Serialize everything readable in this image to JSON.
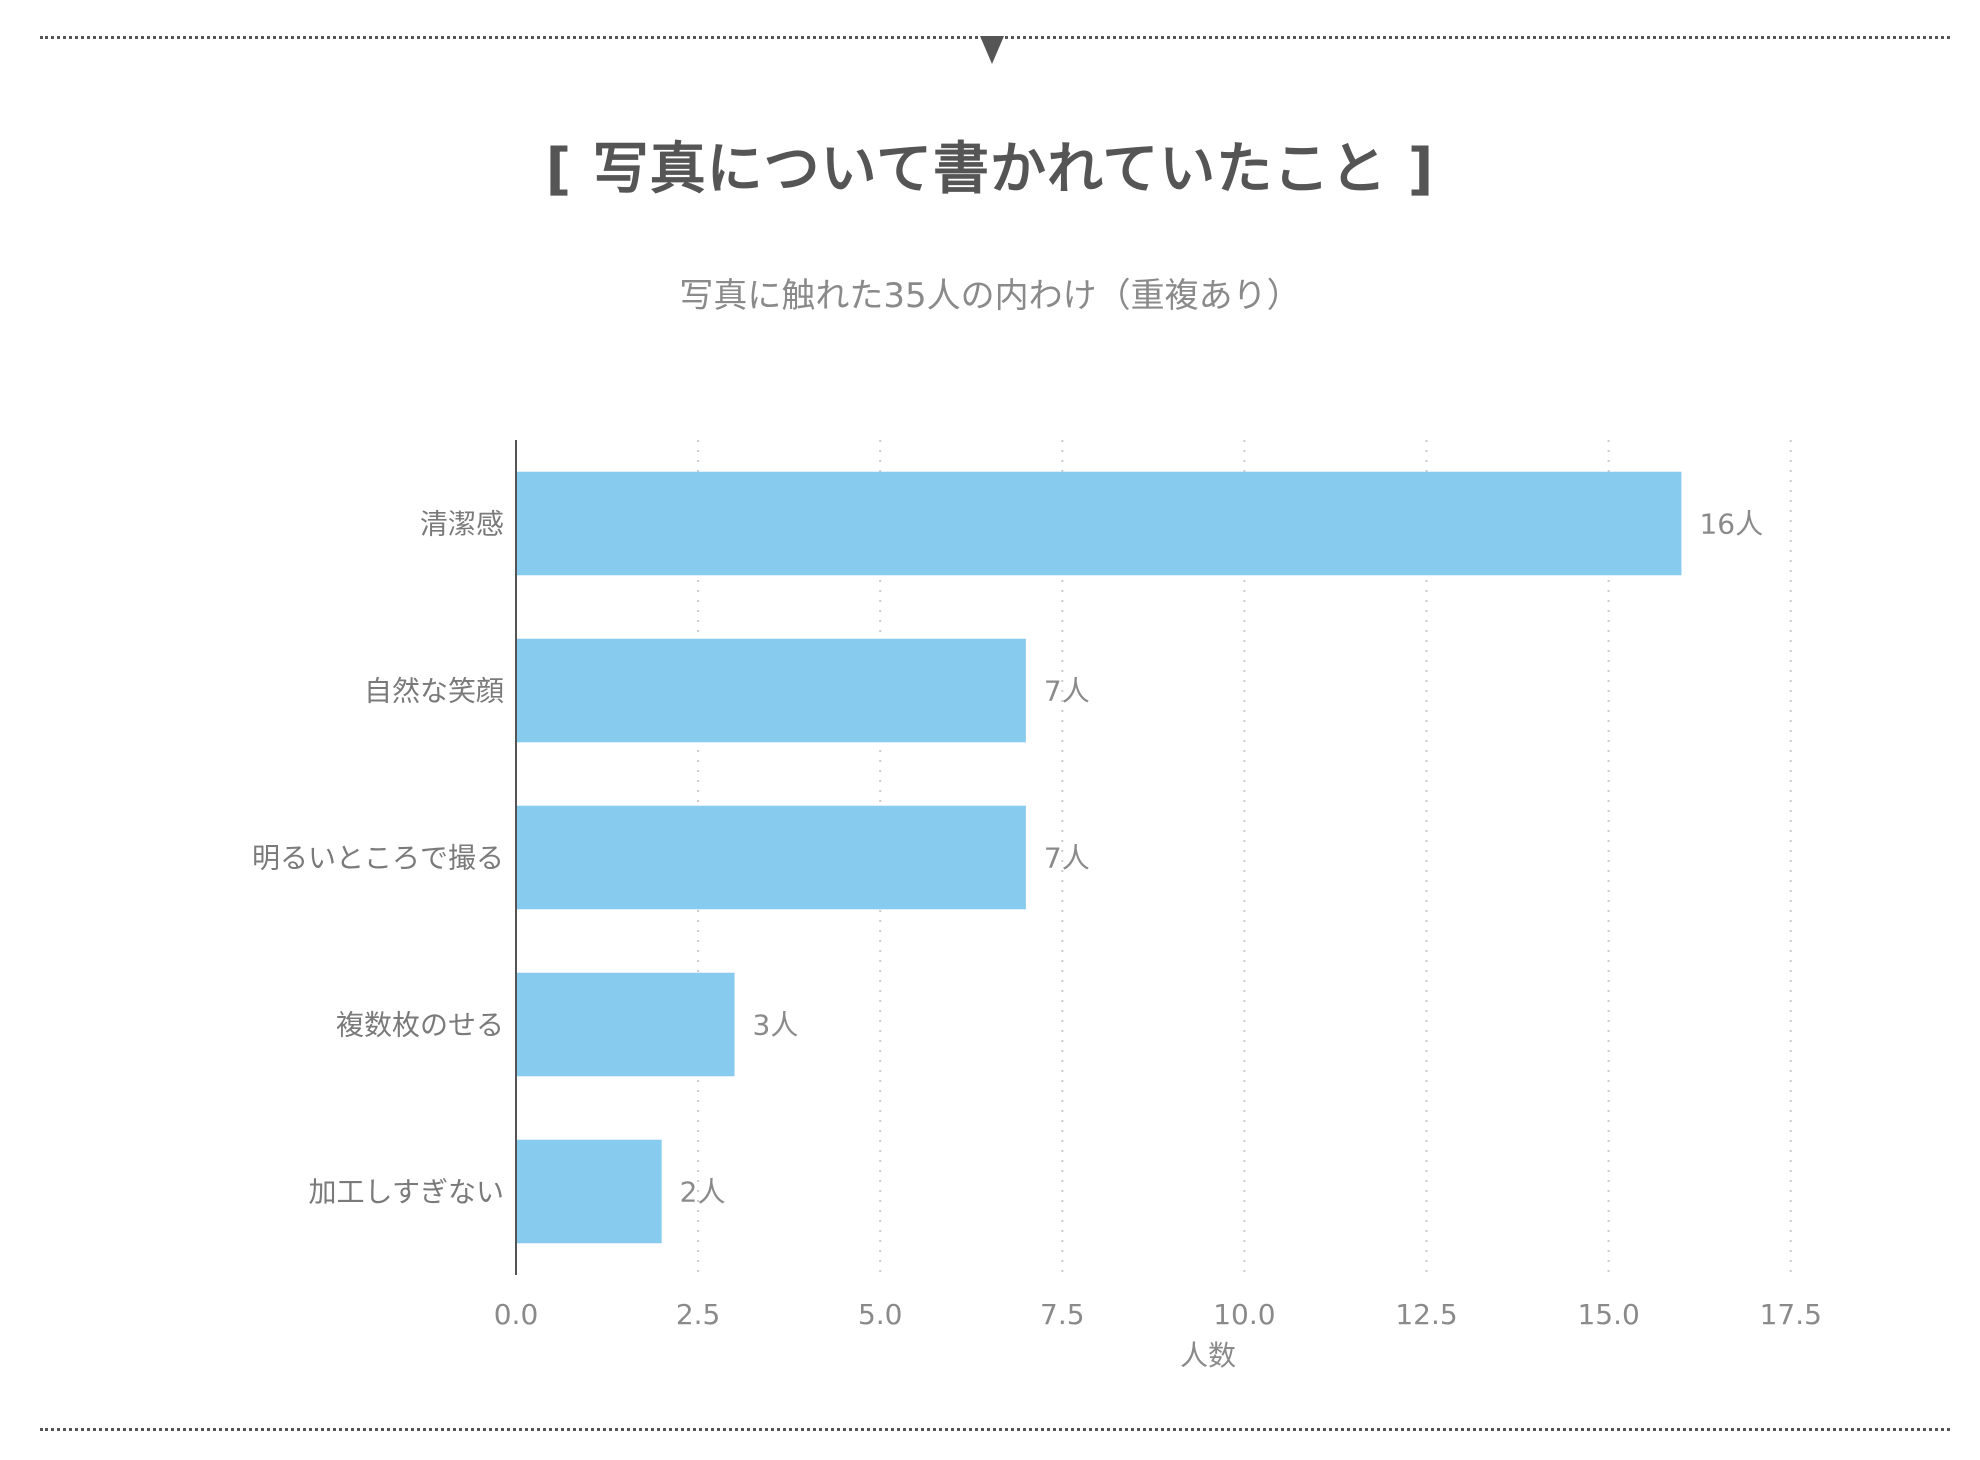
{
  "header": {
    "title": "[ 写真について書かれていたこと ]",
    "subtitle": "写真に触れた35人の内わけ（重複あり）"
  },
  "colors": {
    "bar": "#87CCEE",
    "text": "#555555",
    "grid": "#cccccc"
  },
  "chart_data": {
    "type": "bar",
    "orientation": "horizontal",
    "categories": [
      "清潔感",
      "自然な笑顔",
      "明るいところで撮る",
      "複数枚のせる",
      "加工しすぎない"
    ],
    "values": [
      16,
      7,
      7,
      3,
      2
    ],
    "value_labels": [
      "16人",
      "7人",
      "7人",
      "3人",
      "2人"
    ],
    "xlabel": "人数",
    "ylabel": "",
    "xlim": [
      0,
      19
    ],
    "xticks": [
      0.0,
      2.5,
      5.0,
      7.5,
      10.0,
      12.5,
      15.0,
      17.5
    ],
    "xtick_labels": [
      "0.0",
      "2.5",
      "5.0",
      "7.5",
      "10.0",
      "12.5",
      "15.0",
      "17.5"
    ],
    "grid": "vertical-dotted",
    "legend": "none"
  }
}
